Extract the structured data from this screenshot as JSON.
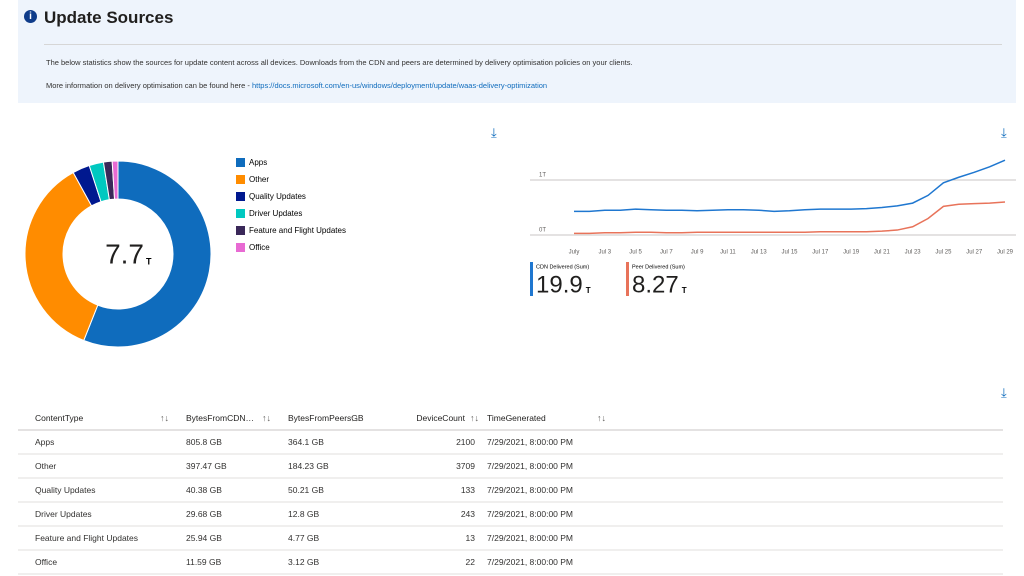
{
  "header": {
    "title": "Update Sources",
    "description": "The below statistics show the sources for update content across all devices. Downloads from the CDN and peers are determined by delivery optimisation policies on your clients.",
    "more_info": "More information on delivery optimisation can be found here - ",
    "link": "https://docs.microsoft.com/en-us/windows/deployment/update/waas-delivery-optimization"
  },
  "donut": {
    "type": "pie",
    "total": 7.7,
    "unit": "T",
    "slices": [
      {
        "name": "Apps",
        "color": "#0f6cbd",
        "value": 56
      },
      {
        "name": "Other",
        "color": "#ff8c00",
        "value": 36
      },
      {
        "name": "Quality Updates",
        "color": "#00188f",
        "value": 3
      },
      {
        "name": "Driver Updates",
        "color": "#00c8c0",
        "value": 2.5
      },
      {
        "name": "Feature and Flight Updates",
        "color": "#3a2859",
        "value": 1.5
      },
      {
        "name": "Office",
        "color": "#e86ad3",
        "value": 1
      }
    ]
  },
  "line_chart": {
    "type": "line",
    "categories": [
      "July",
      null,
      "Jul 3",
      null,
      "Jul 5",
      null,
      "Jul 7",
      null,
      "Jul 9",
      null,
      "Jul 11",
      null,
      "Jul 13",
      null,
      "Jul 15",
      null,
      "Jul 17",
      null,
      "Jul 19",
      null,
      "Jul 21",
      null,
      "Jul 23",
      null,
      "Jul 25",
      null,
      "Jul 27",
      null,
      "Jul 29"
    ],
    "ylim": [
      -0.2,
      1.6
    ],
    "yticks": [
      {
        "value": 0,
        "label": "0T"
      },
      {
        "value": 1,
        "label": "1T"
      }
    ],
    "series": [
      {
        "name": "CDN Delivered (Sum)",
        "color": "#1f77d0",
        "total": 19.9,
        "unit": "T",
        "values": [
          0.43,
          0.43,
          0.45,
          0.45,
          0.47,
          0.46,
          0.45,
          0.45,
          0.44,
          0.45,
          0.46,
          0.46,
          0.45,
          0.43,
          0.44,
          0.46,
          0.47,
          0.47,
          0.47,
          0.48,
          0.5,
          0.53,
          0.58,
          0.72,
          0.95,
          1.05,
          1.14,
          1.24,
          1.36
        ]
      },
      {
        "name": "Peer Delivered (Sum)",
        "color": "#e8735a",
        "total": 8.27,
        "unit": "T",
        "values": [
          0.03,
          0.03,
          0.04,
          0.04,
          0.05,
          0.05,
          0.04,
          0.04,
          0.05,
          0.05,
          0.05,
          0.05,
          0.05,
          0.05,
          0.05,
          0.05,
          0.06,
          0.06,
          0.06,
          0.06,
          0.07,
          0.09,
          0.15,
          0.3,
          0.52,
          0.56,
          0.57,
          0.58,
          0.6
        ]
      }
    ]
  },
  "table": {
    "columns": [
      "ContentType",
      "BytesFromCDN…",
      "BytesFromPeersGB",
      "DeviceCount",
      "TimeGenerated"
    ],
    "rows": [
      [
        "Apps",
        "805.8 GB",
        "364.1 GB",
        2100,
        "7/29/2021, 8:00:00 PM"
      ],
      [
        "Other",
        "397.47 GB",
        "184.23 GB",
        3709,
        "7/29/2021, 8:00:00 PM"
      ],
      [
        "Quality Updates",
        "40.38 GB",
        "50.21 GB",
        133,
        "7/29/2021, 8:00:00 PM"
      ],
      [
        "Driver Updates",
        "29.68 GB",
        "12.8 GB",
        243,
        "7/29/2021, 8:00:00 PM"
      ],
      [
        "Feature and Flight Updates",
        "25.94 GB",
        "4.77 GB",
        13,
        "7/29/2021, 8:00:00 PM"
      ],
      [
        "Office",
        "11.59 GB",
        "3.12 GB",
        22,
        "7/29/2021, 8:00:00 PM"
      ]
    ]
  }
}
